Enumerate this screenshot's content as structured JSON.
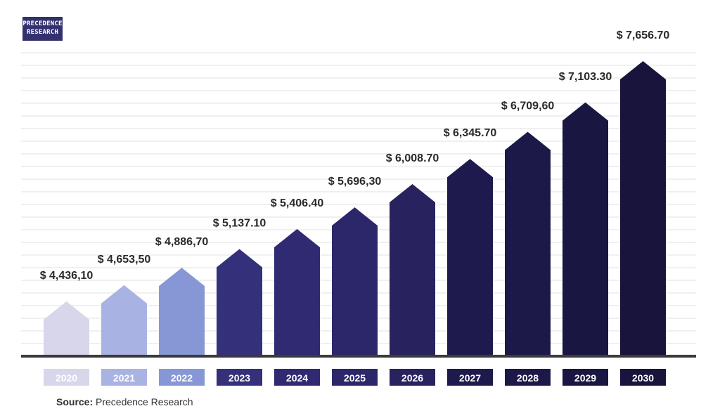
{
  "logo": {
    "line1": "PRECEDENCE",
    "line2": "RESEARCH"
  },
  "source": {
    "label": "Source:",
    "text": "Precedence Research"
  },
  "chart_data": {
    "type": "bar",
    "title": "",
    "xlabel": "",
    "ylabel": "",
    "ylim": [
      4000,
      7800
    ],
    "grid": true,
    "categories": [
      "2020",
      "2021",
      "2022",
      "2023",
      "2024",
      "2025",
      "2026",
      "2027",
      "2028",
      "2029",
      "2030"
    ],
    "values": [
      4436.1,
      4653.5,
      4886.7,
      5137.1,
      5406.4,
      5696.3,
      6008.7,
      6345.7,
      6709.6,
      7103.3,
      7656.7
    ],
    "value_labels": [
      "$ 4,436,10",
      "$ 4,653,50",
      "$ 4,886,70",
      "$ 5,137.10",
      "$ 5,406.40",
      "$ 5,696,30",
      "$ 6,008.70",
      "$ 6,345.70",
      "$ 6,709,60",
      "$ 7,103.30",
      "$ 7,656.70"
    ],
    "colors": [
      "#d7d6ea",
      "#a9b3e3",
      "#8797d6",
      "#34307a",
      "#2f2a72",
      "#2c276b",
      "#28225f",
      "#1e1a4e",
      "#1c1848",
      "#1a1642",
      "#18143c"
    ]
  }
}
